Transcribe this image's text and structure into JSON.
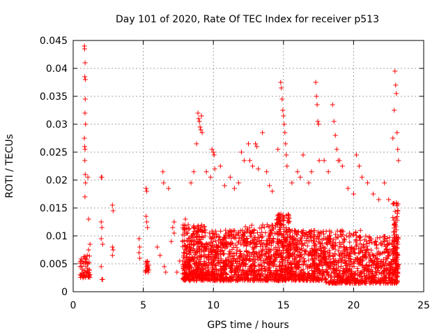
{
  "chart_data": {
    "type": "scatter",
    "title": "Day 101 of 2020, Rate Of TEC Index for receiver p513",
    "xlabel": "GPS time / hours",
    "ylabel": "ROTI / TECUs",
    "xlim": [
      0,
      25
    ],
    "ylim": [
      0,
      0.045
    ],
    "xticks": [
      0,
      5,
      10,
      15,
      20,
      25
    ],
    "xtick_labels": [
      "0",
      "5",
      "10",
      "15",
      "20",
      "25"
    ],
    "yticks": [
      0,
      0.005,
      0.01,
      0.015,
      0.02,
      0.025,
      0.03,
      0.035,
      0.04,
      0.045
    ],
    "ytick_labels": [
      "0",
      "0.005",
      "0.01",
      "0.015",
      "0.02",
      "0.025",
      "0.03",
      "0.035",
      "0.04",
      "0.045"
    ],
    "grid": true,
    "marker": "+",
    "color": "#ff0000",
    "series": [
      {
        "name": "ROTI",
        "points": [
          [
            0.5,
            0.0045
          ],
          [
            0.55,
            0.003
          ],
          [
            0.6,
            0.0055
          ],
          [
            0.65,
            0.004
          ],
          [
            0.7,
            0.0025
          ],
          [
            0.75,
            0.005
          ],
          [
            0.8,
            0.0035
          ],
          [
            0.85,
            0.006
          ],
          [
            0.9,
            0.0045
          ],
          [
            0.95,
            0.003
          ],
          [
            1.0,
            0.0065
          ],
          [
            1.05,
            0.005
          ],
          [
            1.1,
            0.0075
          ],
          [
            1.15,
            0.004
          ],
          [
            1.2,
            0.0085
          ],
          [
            0.8,
            0.044
          ],
          [
            0.82,
            0.0435
          ],
          [
            0.85,
            0.041
          ],
          [
            0.83,
            0.0385
          ],
          [
            0.87,
            0.038
          ],
          [
            0.86,
            0.0345
          ],
          [
            0.84,
            0.032
          ],
          [
            0.88,
            0.03
          ],
          [
            0.8,
            0.0275
          ],
          [
            0.82,
            0.026
          ],
          [
            0.85,
            0.0255
          ],
          [
            0.83,
            0.0235
          ],
          [
            0.86,
            0.021
          ],
          [
            0.88,
            0.0195
          ],
          [
            0.84,
            0.017
          ],
          [
            1.05,
            0.0205
          ],
          [
            1.1,
            0.013
          ],
          [
            2.0,
            0.0205
          ],
          [
            2.05,
            0.0205
          ],
          [
            2.0,
            0.0125
          ],
          [
            2.05,
            0.0115
          ],
          [
            2.0,
            0.0095
          ],
          [
            2.1,
            0.0085
          ],
          [
            2.0,
            0.0045
          ],
          [
            2.05,
            0.0022
          ],
          [
            2.1,
            0.0022
          ],
          [
            2.8,
            0.0155
          ],
          [
            2.85,
            0.0145
          ],
          [
            2.8,
            0.008
          ],
          [
            2.85,
            0.0075
          ],
          [
            2.8,
            0.0065
          ],
          [
            4.7,
            0.0095
          ],
          [
            4.75,
            0.008
          ],
          [
            4.7,
            0.007
          ],
          [
            4.75,
            0.006
          ],
          [
            5.2,
            0.0185
          ],
          [
            5.25,
            0.018
          ],
          [
            5.2,
            0.0135
          ],
          [
            5.25,
            0.0125
          ],
          [
            5.3,
            0.0115
          ],
          [
            5.2,
            0.005
          ],
          [
            5.25,
            0.0045
          ],
          [
            5.3,
            0.004
          ],
          [
            5.35,
            0.0035
          ],
          [
            6.0,
            0.008
          ],
          [
            6.2,
            0.0065
          ],
          [
            6.4,
            0.0215
          ],
          [
            6.45,
            0.0195
          ],
          [
            6.5,
            0.0045
          ],
          [
            6.6,
            0.0035
          ],
          [
            6.8,
            0.0185
          ],
          [
            7.0,
            0.009
          ],
          [
            7.2,
            0.0105
          ],
          [
            7.1,
            0.0115
          ],
          [
            7.2,
            0.0125
          ],
          [
            7.4,
            0.0035
          ],
          [
            7.6,
            0.0055
          ],
          [
            7.8,
            0.009
          ],
          [
            7.9,
            0.007
          ],
          [
            8.0,
            0.013
          ],
          [
            8.2,
            0.012
          ],
          [
            8.4,
            0.0195
          ],
          [
            8.6,
            0.0215
          ],
          [
            8.8,
            0.0265
          ],
          [
            8.9,
            0.032
          ],
          [
            8.95,
            0.031
          ],
          [
            9.0,
            0.0305
          ],
          [
            9.05,
            0.0295
          ],
          [
            9.1,
            0.029
          ],
          [
            9.15,
            0.0315
          ],
          [
            9.2,
            0.0285
          ],
          [
            9.5,
            0.0215
          ],
          [
            9.8,
            0.0205
          ],
          [
            9.9,
            0.0255
          ],
          [
            10.0,
            0.025
          ],
          [
            10.05,
            0.0245
          ],
          [
            10.1,
            0.022
          ],
          [
            10.5,
            0.0225
          ],
          [
            10.8,
            0.019
          ],
          [
            11.2,
            0.0205
          ],
          [
            11.5,
            0.0185
          ],
          [
            11.8,
            0.0195
          ],
          [
            12.0,
            0.025
          ],
          [
            12.2,
            0.0235
          ],
          [
            12.5,
            0.0265
          ],
          [
            12.6,
            0.0235
          ],
          [
            12.8,
            0.0225
          ],
          [
            13.0,
            0.0265
          ],
          [
            13.1,
            0.026
          ],
          [
            13.2,
            0.022
          ],
          [
            13.5,
            0.0285
          ],
          [
            13.8,
            0.0215
          ],
          [
            14.0,
            0.019
          ],
          [
            14.2,
            0.018
          ],
          [
            14.6,
            0.0255
          ],
          [
            14.8,
            0.0375
          ],
          [
            14.85,
            0.0365
          ],
          [
            14.9,
            0.0345
          ],
          [
            14.95,
            0.0325
          ],
          [
            15.0,
            0.0315
          ],
          [
            15.05,
            0.03
          ],
          [
            15.1,
            0.0285
          ],
          [
            15.15,
            0.0265
          ],
          [
            15.2,
            0.0245
          ],
          [
            15.25,
            0.0225
          ],
          [
            15.6,
            0.0195
          ],
          [
            16.0,
            0.0215
          ],
          [
            16.2,
            0.0205
          ],
          [
            16.4,
            0.0245
          ],
          [
            16.8,
            0.0195
          ],
          [
            17.0,
            0.0215
          ],
          [
            17.3,
            0.0375
          ],
          [
            17.35,
            0.035
          ],
          [
            17.4,
            0.0335
          ],
          [
            17.45,
            0.0305
          ],
          [
            17.5,
            0.03
          ],
          [
            17.55,
            0.0235
          ],
          [
            17.9,
            0.0235
          ],
          [
            18.2,
            0.0215
          ],
          [
            18.5,
            0.0335
          ],
          [
            18.6,
            0.0305
          ],
          [
            18.7,
            0.028
          ],
          [
            18.8,
            0.0255
          ],
          [
            18.9,
            0.0235
          ],
          [
            19.0,
            0.0235
          ],
          [
            19.2,
            0.0225
          ],
          [
            19.6,
            0.0185
          ],
          [
            20.0,
            0.0175
          ],
          [
            20.2,
            0.0245
          ],
          [
            20.4,
            0.0225
          ],
          [
            20.6,
            0.0205
          ],
          [
            21.0,
            0.0195
          ],
          [
            21.4,
            0.0175
          ],
          [
            21.8,
            0.0165
          ],
          [
            22.2,
            0.0195
          ],
          [
            22.5,
            0.0165
          ],
          [
            22.8,
            0.0275
          ],
          [
            22.9,
            0.0325
          ],
          [
            22.95,
            0.0395
          ],
          [
            23.0,
            0.037
          ],
          [
            23.05,
            0.0355
          ],
          [
            23.1,
            0.0285
          ],
          [
            23.15,
            0.0255
          ],
          [
            23.2,
            0.0235
          ]
        ]
      }
    ]
  }
}
